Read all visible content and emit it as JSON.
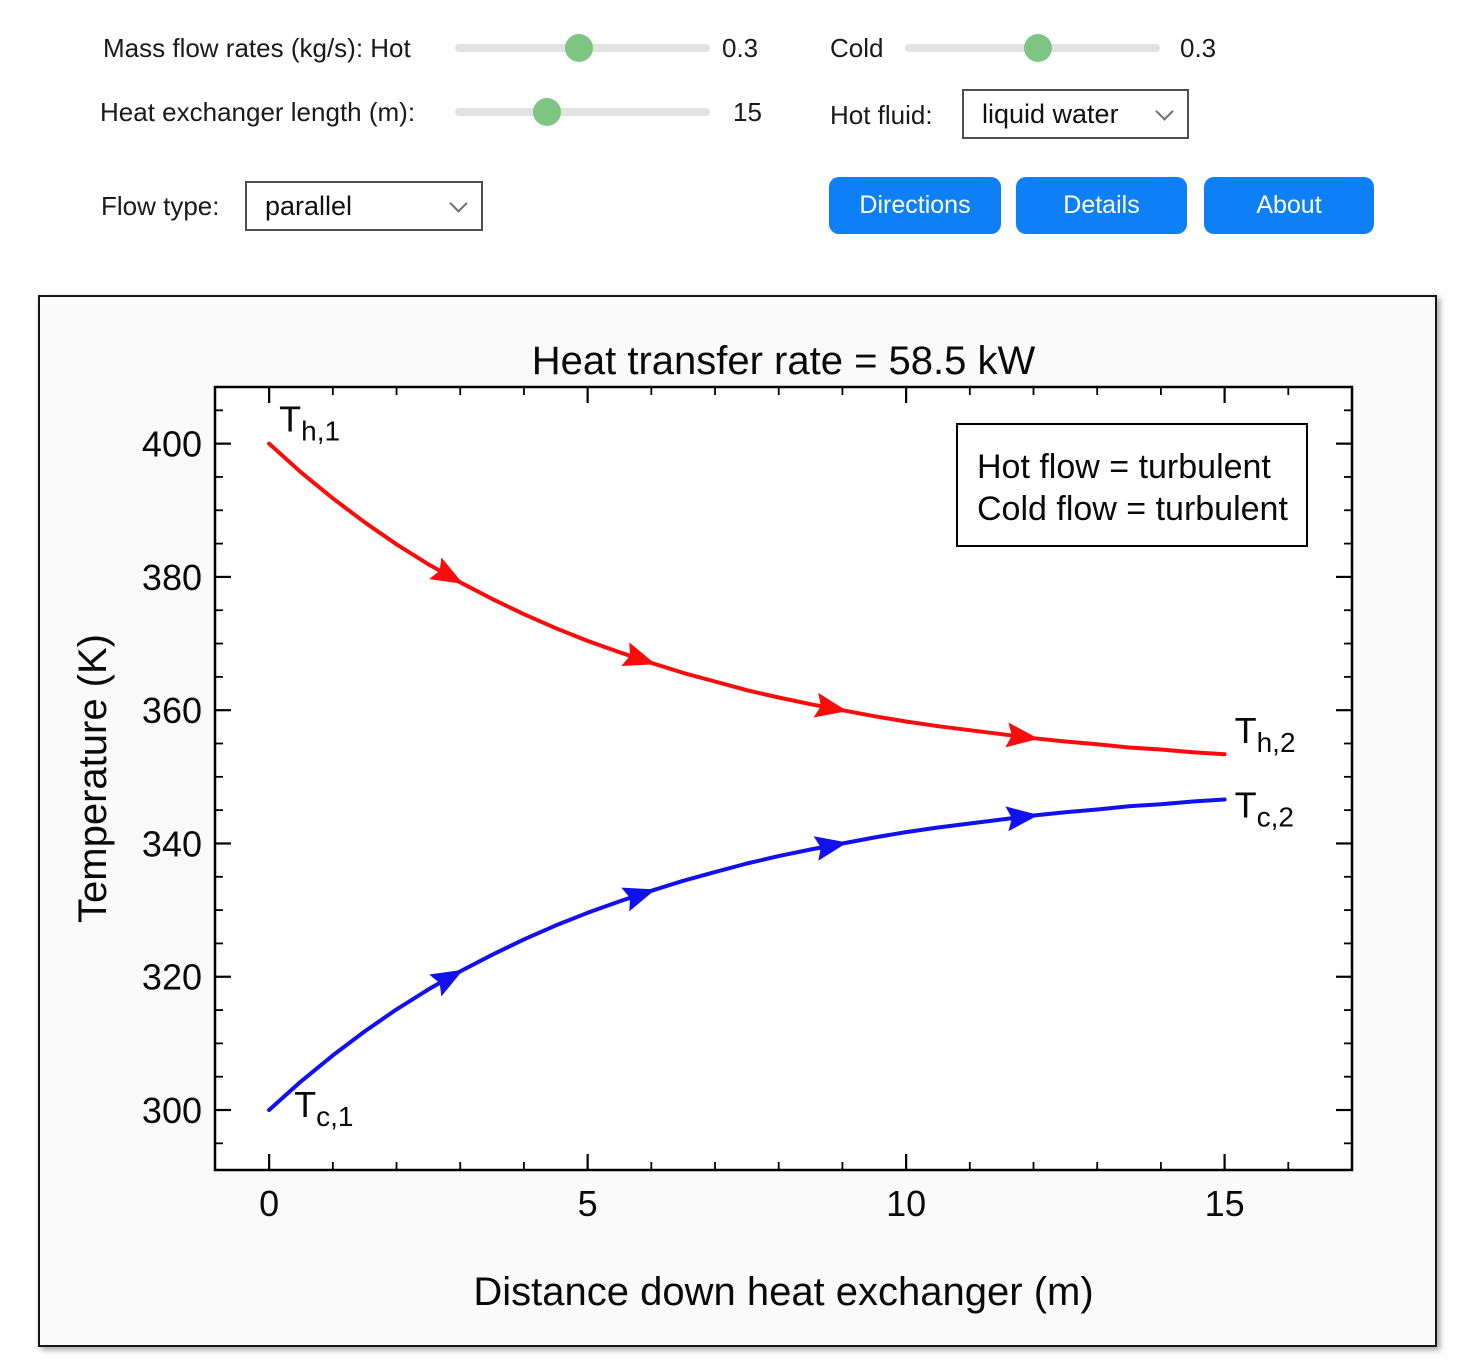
{
  "controls": {
    "mass_flow_hot_label": "Mass flow rates (kg/s): Hot",
    "cold_label": "Cold",
    "length_label": "Heat exchanger length (m):",
    "hot_fluid_label": "Hot fluid:",
    "flow_type_label": "Flow type:",
    "sliders": {
      "hot": {
        "value": "0.3",
        "pct": 48.5
      },
      "cold": {
        "value": "0.3",
        "pct": 52
      },
      "length": {
        "value": "15",
        "pct": 36
      }
    },
    "dropdowns": {
      "hot_fluid": "liquid water",
      "flow_type": "parallel"
    },
    "buttons": {
      "directions": "Directions",
      "details": "Details",
      "about": "About"
    },
    "slider_thumb_color": "#7ec482",
    "button_color": "#0e80f6"
  },
  "chart_data": {
    "type": "line",
    "title": "Heat transfer rate = 58.5 kW",
    "xlabel": "Distance down heat exchanger (m)",
    "ylabel": "Temperature (K)",
    "xlim": [
      -0.85,
      17
    ],
    "ylim": [
      291,
      408.5
    ],
    "x_major_ticks": [
      0,
      5,
      10,
      15
    ],
    "x_minor_tick_step": 1,
    "y_major_ticks": [
      300,
      320,
      340,
      360,
      380,
      400
    ],
    "y_minor_tick_step": 5,
    "grid": false,
    "legend_position": "top-right",
    "annotation_box": {
      "lines": [
        "Hot flow = turbulent",
        "Cold flow = turbulent"
      ]
    },
    "series": [
      {
        "name": "hot-fluid",
        "color": "#f80c0c",
        "start_label": {
          "main": "T",
          "sub": "h,1"
        },
        "end_label": {
          "main": "T",
          "sub": "h,2"
        },
        "x": [
          0,
          0.5,
          1,
          1.5,
          2,
          2.5,
          3,
          3.5,
          4,
          4.5,
          5,
          5.5,
          6,
          6.5,
          7,
          7.5,
          8,
          8.5,
          9,
          9.5,
          10,
          10.5,
          11,
          11.5,
          12,
          12.5,
          13,
          13.5,
          14,
          14.5,
          15
        ],
        "y": [
          400,
          395.7,
          391.8,
          388.2,
          384.9,
          381.9,
          379.2,
          376.7,
          374.4,
          372.3,
          370.4,
          368.7,
          367.1,
          365.6,
          364.3,
          363,
          361.9,
          360.9,
          360,
          359.1,
          358.3,
          357.6,
          357,
          356.4,
          355.8,
          355.3,
          354.9,
          354.4,
          354.1,
          353.7,
          353.4
        ],
        "arrows_at_x": [
          2.8,
          5.8,
          8.8,
          11.8
        ]
      },
      {
        "name": "cold-fluid",
        "color": "#1111ee",
        "start_label": {
          "main": "T",
          "sub": "c,1"
        },
        "end_label": {
          "main": "T",
          "sub": "c,2"
        },
        "x": [
          0,
          0.5,
          1,
          1.5,
          2,
          2.5,
          3,
          3.5,
          4,
          4.5,
          5,
          5.5,
          6,
          6.5,
          7,
          7.5,
          8,
          8.5,
          9,
          9.5,
          10,
          10.5,
          11,
          11.5,
          12,
          12.5,
          13,
          13.5,
          14,
          14.5,
          15
        ],
        "y": [
          300,
          304.3,
          308.2,
          311.8,
          315.1,
          318.1,
          320.8,
          323.3,
          325.6,
          327.7,
          329.6,
          331.3,
          332.9,
          334.4,
          335.7,
          337,
          338.1,
          339.1,
          340,
          340.9,
          341.7,
          342.4,
          343,
          343.6,
          344.2,
          344.7,
          345.1,
          345.6,
          345.9,
          346.3,
          346.6
        ],
        "arrows_at_x": [
          2.8,
          5.8,
          8.8,
          11.8
        ]
      }
    ]
  }
}
